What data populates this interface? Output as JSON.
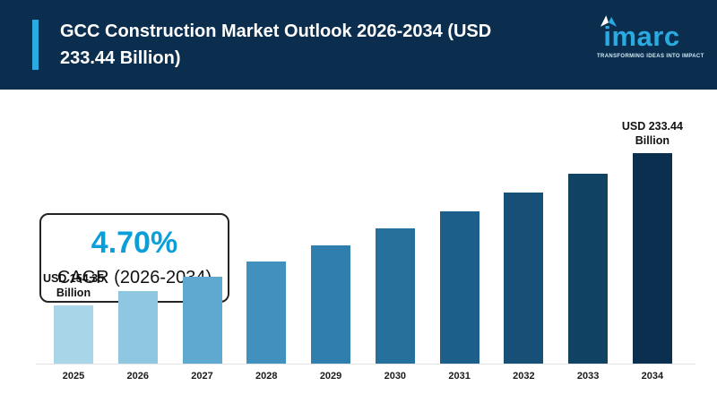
{
  "theme": {
    "header_bg": "#0c2e4e",
    "accent": "#29abe2",
    "cagr_value_color": "#0a9fd8",
    "page_bg": "#ffffff"
  },
  "header": {
    "title": "GCC Construction Market Outlook 2026-2034 (USD 233.44 Billion)",
    "logo": {
      "text": "imarc",
      "tagline": "TRANSFORMING IDEAS INTO IMPACT"
    }
  },
  "cagr_box": {
    "value": "4.70%",
    "label": "CAGR (2026-2034)"
  },
  "chart_data": {
    "type": "bar",
    "title": "GCC Construction Market Outlook 2026-2034 (USD 233.44 Billion)",
    "categories": [
      "2025",
      "2026",
      "2027",
      "2028",
      "2029",
      "2030",
      "2031",
      "2032",
      "2033",
      "2034"
    ],
    "values": [
      154.35,
      161.6,
      169.2,
      177.15,
      185.47,
      194.19,
      203.32,
      212.87,
      222.88,
      233.44
    ],
    "unit": "USD Billion",
    "annotations": [
      {
        "index": 0,
        "text": "USD 154.35 Billion"
      },
      {
        "index": 9,
        "text": "USD 233.44 Billion"
      }
    ],
    "bar_colors": [
      "#a9d5e9",
      "#8fc6e0",
      "#5fa8cf",
      "#4190bd",
      "#2f7ead",
      "#26709c",
      "#1c5f8b",
      "#165077",
      "#104263",
      "#0b2f4f"
    ],
    "xlabel": "",
    "ylabel": "",
    "ylim": [
      0,
      250
    ],
    "grid": false,
    "legend": false
  }
}
